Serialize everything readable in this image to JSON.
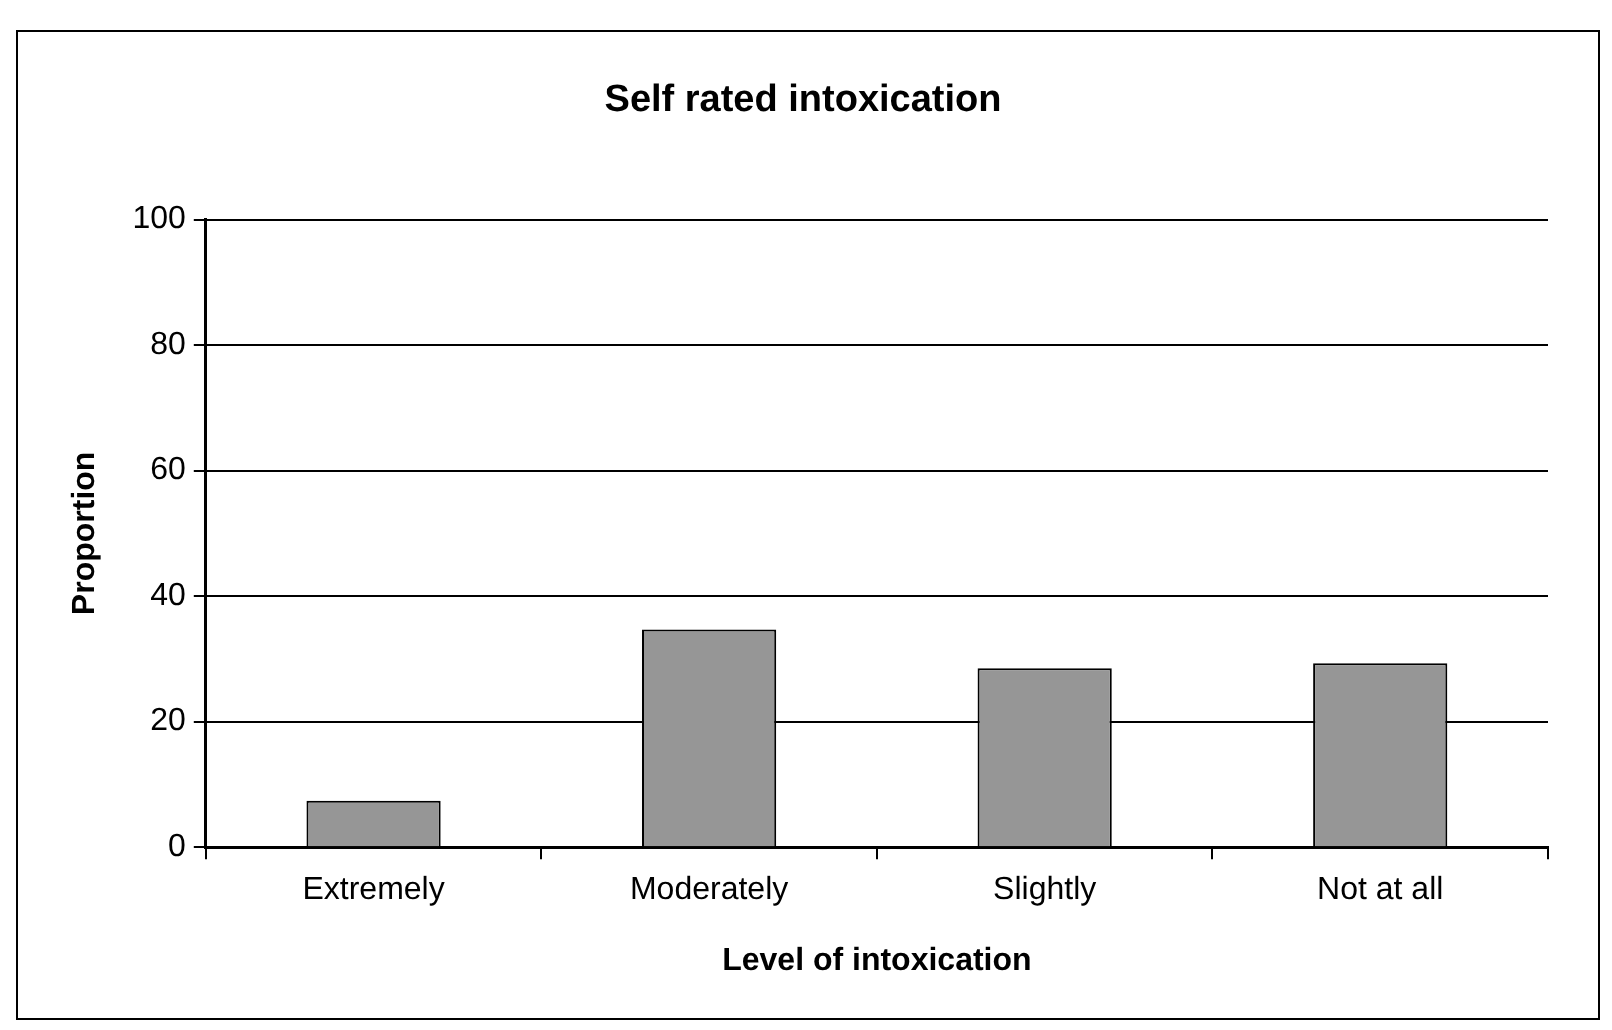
{
  "chart_data": {
    "type": "bar",
    "title": "Self rated intoxication",
    "xlabel": "Level of intoxication",
    "ylabel": "Proportion",
    "categories": [
      "Extremely",
      "Moderately",
      "Slightly",
      "Not at all"
    ],
    "values": [
      7.4,
      34.7,
      28.5,
      29.3
    ],
    "color": "#969696",
    "ylim": [
      0,
      100
    ],
    "yticks": [
      0,
      20,
      40,
      60,
      80,
      100
    ],
    "grid": "y",
    "legend": false
  }
}
